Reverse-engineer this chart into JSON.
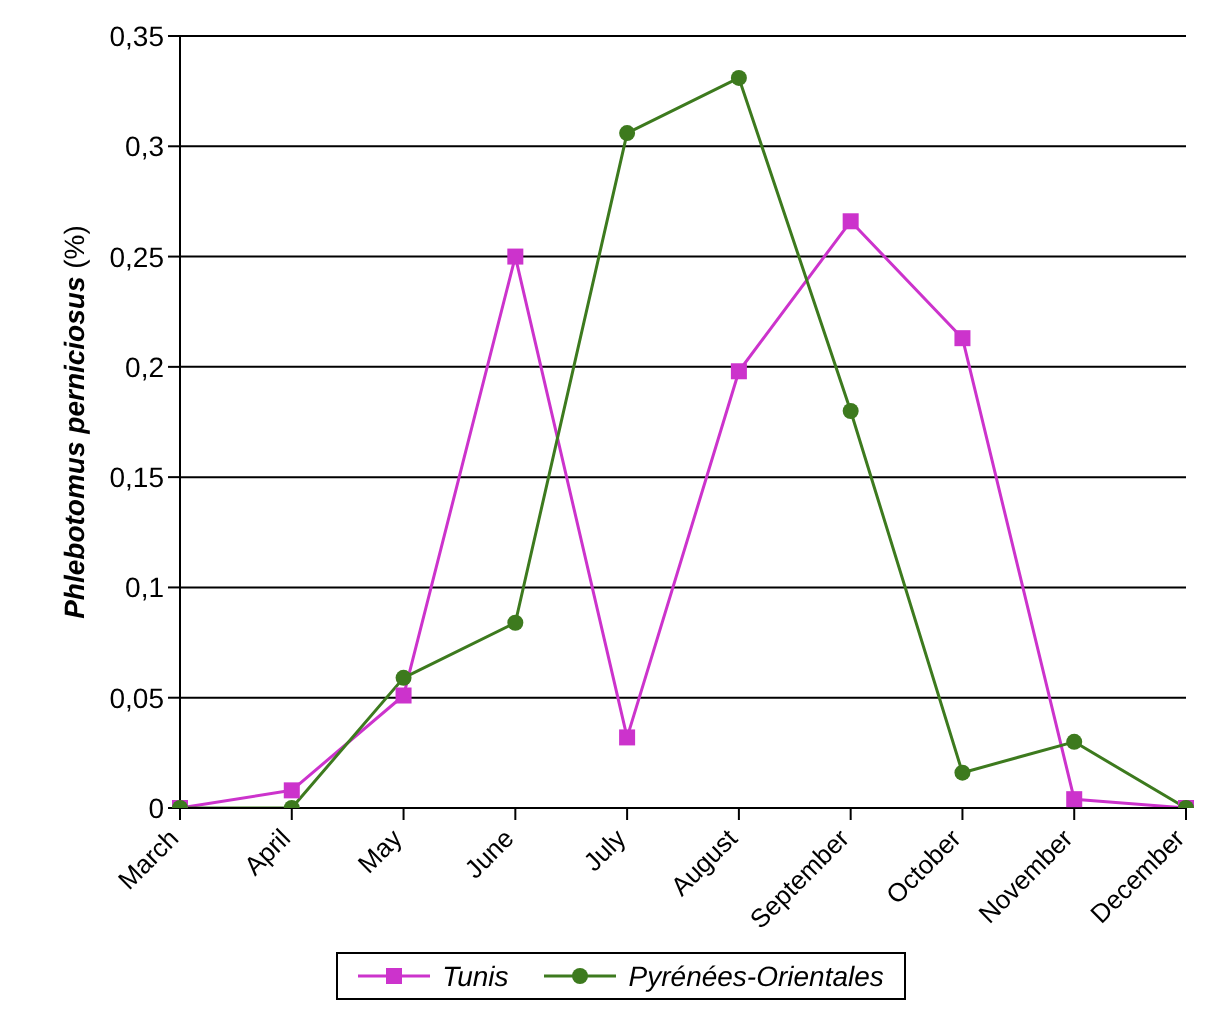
{
  "chart_data": {
    "type": "line",
    "ylabel": "Phlebotomus perniciosus (%)",
    "categories": [
      "March",
      "April",
      "May",
      "June",
      "July",
      "August",
      "September",
      "October",
      "November",
      "December"
    ],
    "series": [
      {
        "name": "Tunis",
        "color": "#cc33cc",
        "marker": "square",
        "values": [
          0,
          0.008,
          0.051,
          0.25,
          0.032,
          0.198,
          0.266,
          0.213,
          0.004,
          0
        ]
      },
      {
        "name": "Pyrénées-Orientales",
        "color": "#3d7a1e",
        "marker": "circle",
        "values": [
          0,
          0,
          0.059,
          0.084,
          0.306,
          0.331,
          0.18,
          0.016,
          0.03,
          0
        ]
      }
    ],
    "ylim": [
      0,
      0.35
    ],
    "yticks": [
      0,
      {
        "value": 0.05,
        "label": "0,05"
      },
      {
        "value": 0.1,
        "label": "0,1"
      },
      {
        "value": 0.15,
        "label": "0,15"
      },
      {
        "value": 0.2,
        "label": "0,2"
      },
      {
        "value": 0.25,
        "label": "0,25"
      },
      {
        "value": 0.3,
        "label": "0,3"
      },
      {
        "value": 0.35,
        "label": "0,35"
      }
    ],
    "grid": "y",
    "legend": "bottom",
    "line_style": "solid"
  }
}
